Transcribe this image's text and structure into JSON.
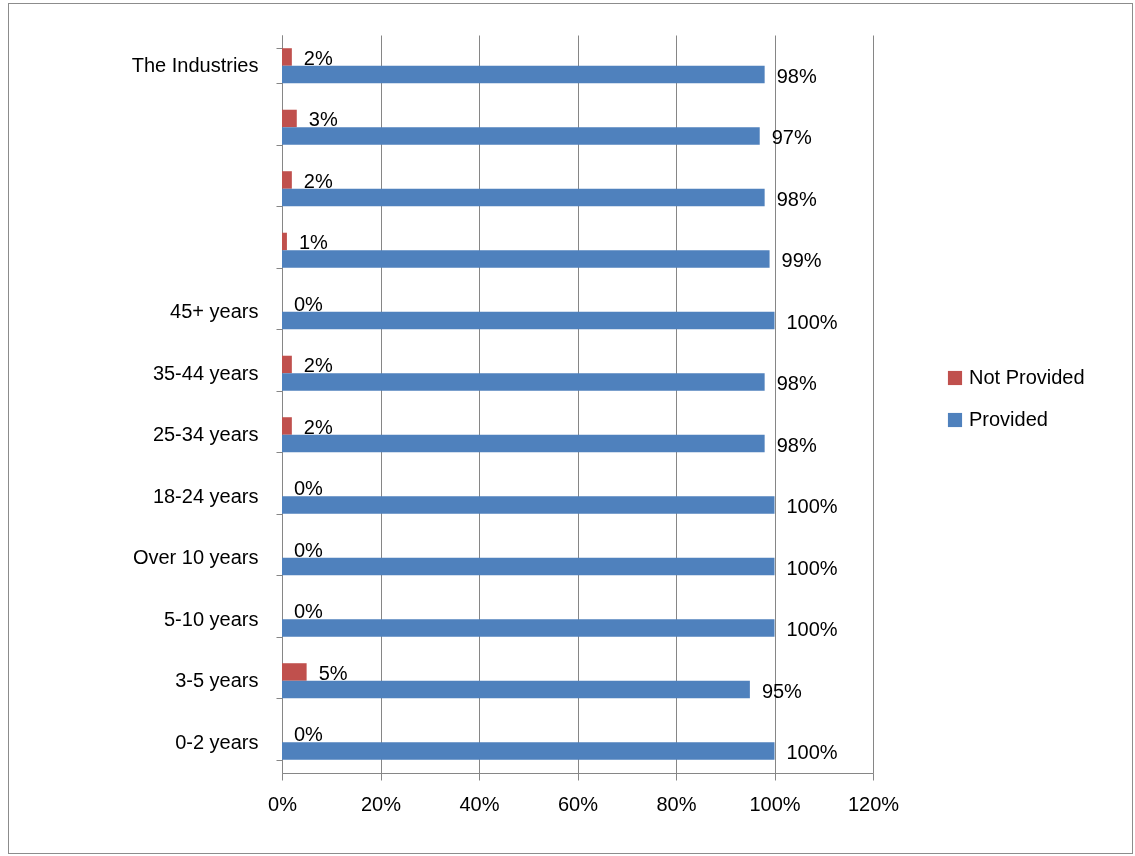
{
  "chart_data": {
    "type": "bar",
    "orientation": "horizontal",
    "categories": [
      "The Industries",
      null,
      null,
      null,
      "45+ years",
      "35-44 years",
      "25-34 years",
      "18-24 years",
      "Over 10 years",
      "5-10 years",
      "3-5 years",
      "0-2 years"
    ],
    "series": [
      {
        "name": "Not Provided",
        "color": "#c0504d",
        "values": [
          2,
          3,
          2,
          1,
          0,
          2,
          2,
          0,
          0,
          0,
          5,
          0
        ],
        "value_labels": [
          "2%",
          "3%",
          "2%",
          "1%",
          "0%",
          "2%",
          "2%",
          "0%",
          "0%",
          "0%",
          "5%",
          "0%"
        ]
      },
      {
        "name": "Provided",
        "color": "#4f81bd",
        "values": [
          98,
          97,
          98,
          99,
          100,
          98,
          98,
          100,
          100,
          100,
          95,
          100
        ],
        "value_labels": [
          "98%",
          "97%",
          "98%",
          "99%",
          "100%",
          "98%",
          "98%",
          "100%",
          "100%",
          "100%",
          "95%",
          "100%"
        ]
      }
    ],
    "xlim": [
      0,
      120
    ],
    "xticks": [
      {
        "value": 0,
        "label": "0%"
      },
      {
        "value": 20,
        "label": "20%"
      },
      {
        "value": 40,
        "label": "40%"
      },
      {
        "value": 60,
        "label": "60%"
      },
      {
        "value": 80,
        "label": "80%"
      },
      {
        "value": 100,
        "label": "100%"
      },
      {
        "value": 120,
        "label": "120%"
      }
    ],
    "grid": "x",
    "legend": "right"
  }
}
